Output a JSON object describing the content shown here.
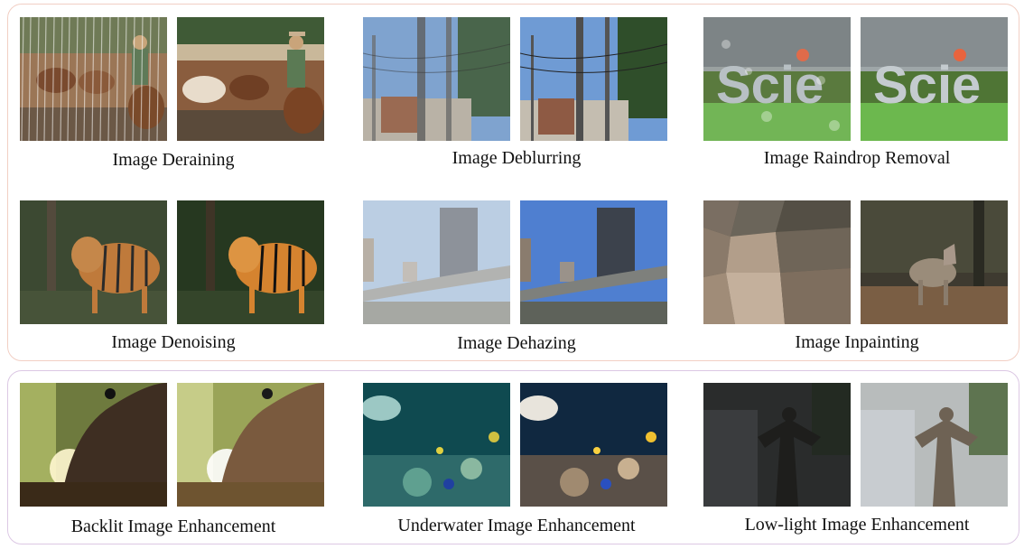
{
  "tasks": [
    {
      "label": "Image Deraining"
    },
    {
      "label": "Image Deblurring"
    },
    {
      "label": "Image Raindrop Removal"
    },
    {
      "label": "Image Denoising"
    },
    {
      "label": "Image Dehazing"
    },
    {
      "label": "Image Inpainting"
    },
    {
      "label": "Backlit Image Enhancement"
    },
    {
      "label": "Underwater Image Enhancement"
    },
    {
      "label": "Low-light Image Enhancement"
    }
  ],
  "sign_text": "Scie",
  "colors": {
    "group_1_border": "#f2cfc4",
    "group_2_border": "#dcc8e4"
  }
}
